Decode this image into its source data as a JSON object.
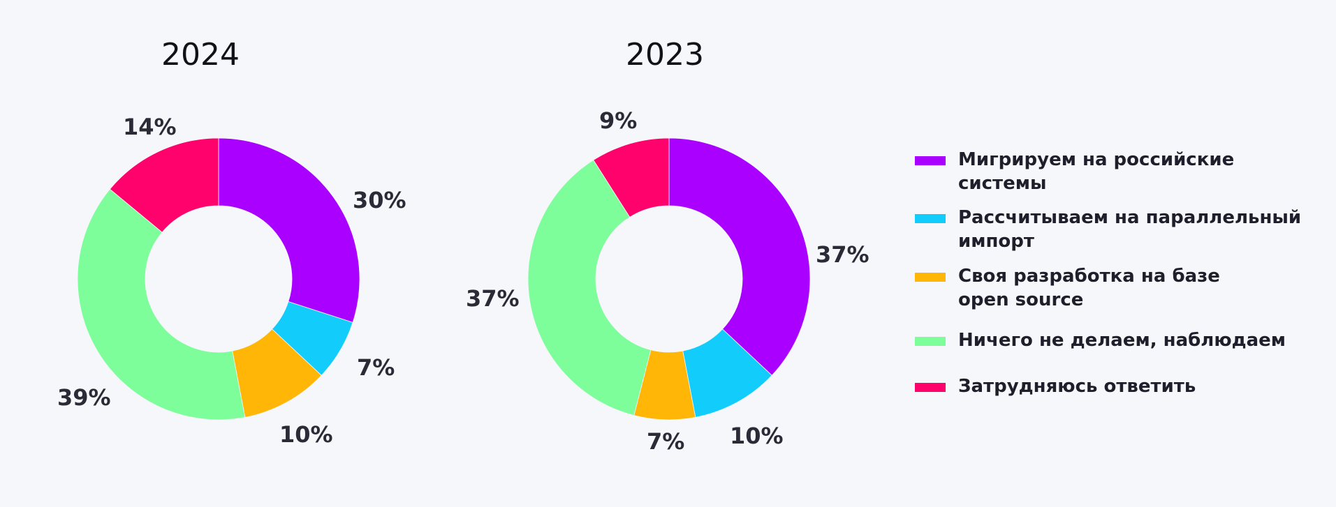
{
  "chart_data": [
    {
      "type": "pie",
      "title": "2024",
      "categories": [
        "Мигрируем на российские\nсистемы",
        "Рассчитываем на параллельный\nимпорт",
        "Своя разработка на базе\nopen source",
        "Ничего не делаем, наблюдаем",
        "Затрудняюсь ответить"
      ],
      "values": [
        30,
        7,
        10,
        39,
        14
      ],
      "labels": [
        "30%",
        "7%",
        "10%",
        "39%",
        "14%"
      ],
      "donut": true
    },
    {
      "type": "pie",
      "title": "2023",
      "categories": [
        "Мигрируем на российские\nсистемы",
        "Рассчитываем на параллельный\nимпорт",
        "Своя разработка на базе\nopen source",
        "Ничего не делаем, наблюдаем",
        "Затрудняюсь ответить"
      ],
      "values": [
        37,
        10,
        7,
        37,
        9
      ],
      "labels": [
        "37%",
        "10%",
        "7%",
        "37%",
        "9%"
      ],
      "donut": true
    }
  ],
  "legend": {
    "placement": "right",
    "items": [
      {
        "label": "Мигрируем на российские\nсистемы",
        "color": "#aa00ff"
      },
      {
        "label": "Рассчитываем на параллельный\nимпорт",
        "color": "#12cdfc"
      },
      {
        "label": "Своя разработка на базе\nopen source",
        "color": "#ffb606"
      },
      {
        "label": "Ничего не делаем, наблюдаем",
        "color": "#7dfe9b"
      },
      {
        "label": "Затрудняюсь ответить",
        "color": "#ff026c"
      }
    ]
  }
}
